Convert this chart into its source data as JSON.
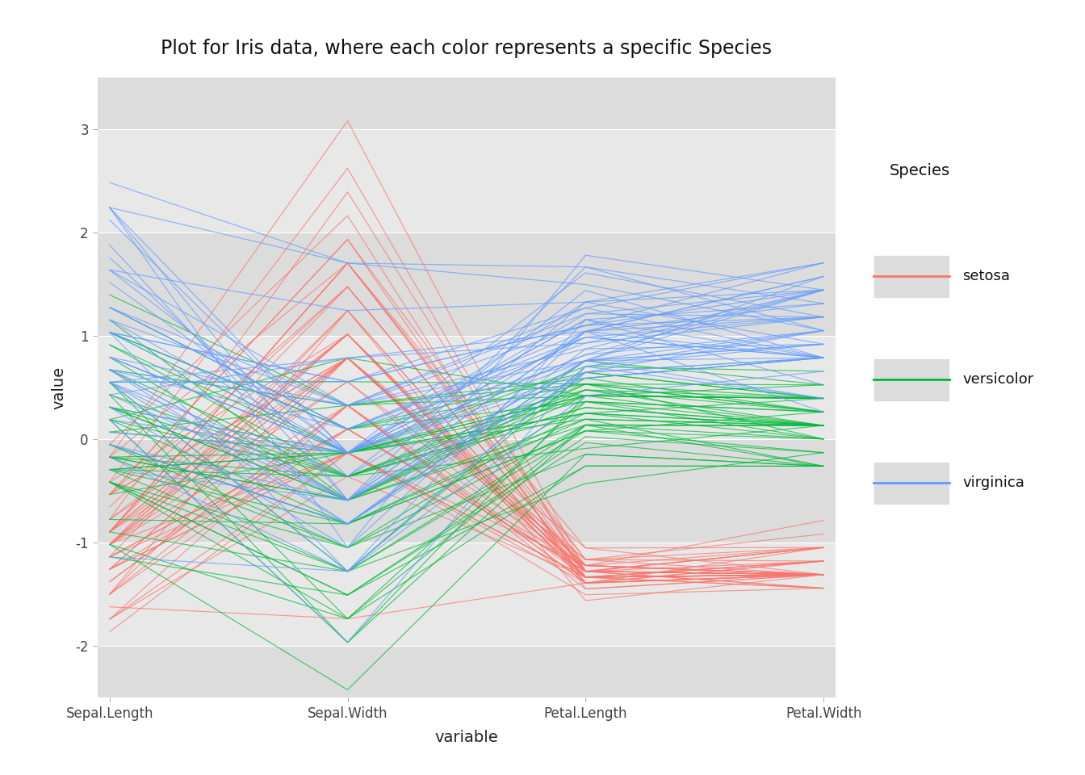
{
  "title": "Plot for Iris data, where each color represents a specific Species",
  "xlabel": "variable",
  "ylabel": "value",
  "columns": [
    "Sepal.Length",
    "Sepal.Width",
    "Petal.Length",
    "Petal.Width"
  ],
  "species_colors": {
    "setosa": "#F8766D",
    "versicolor": "#00BA38",
    "virginica": "#619CFF"
  },
  "ylim": [
    -2.5,
    3.5
  ],
  "yticks": [
    -2,
    -1,
    0,
    1,
    2,
    3
  ],
  "background_color": "#EBEBEB",
  "panel_bg": "#EBEBEB",
  "band_color_dark": "#DCDCDC",
  "band_color_light": "#E8E8E8",
  "grid_color": "#FFFFFF",
  "outer_bg": "#FFFFFF",
  "title_fontsize": 17,
  "axis_label_fontsize": 14,
  "tick_fontsize": 12,
  "legend_title_fontsize": 14,
  "legend_fontsize": 13,
  "line_alpha": 0.7,
  "line_width": 0.85
}
